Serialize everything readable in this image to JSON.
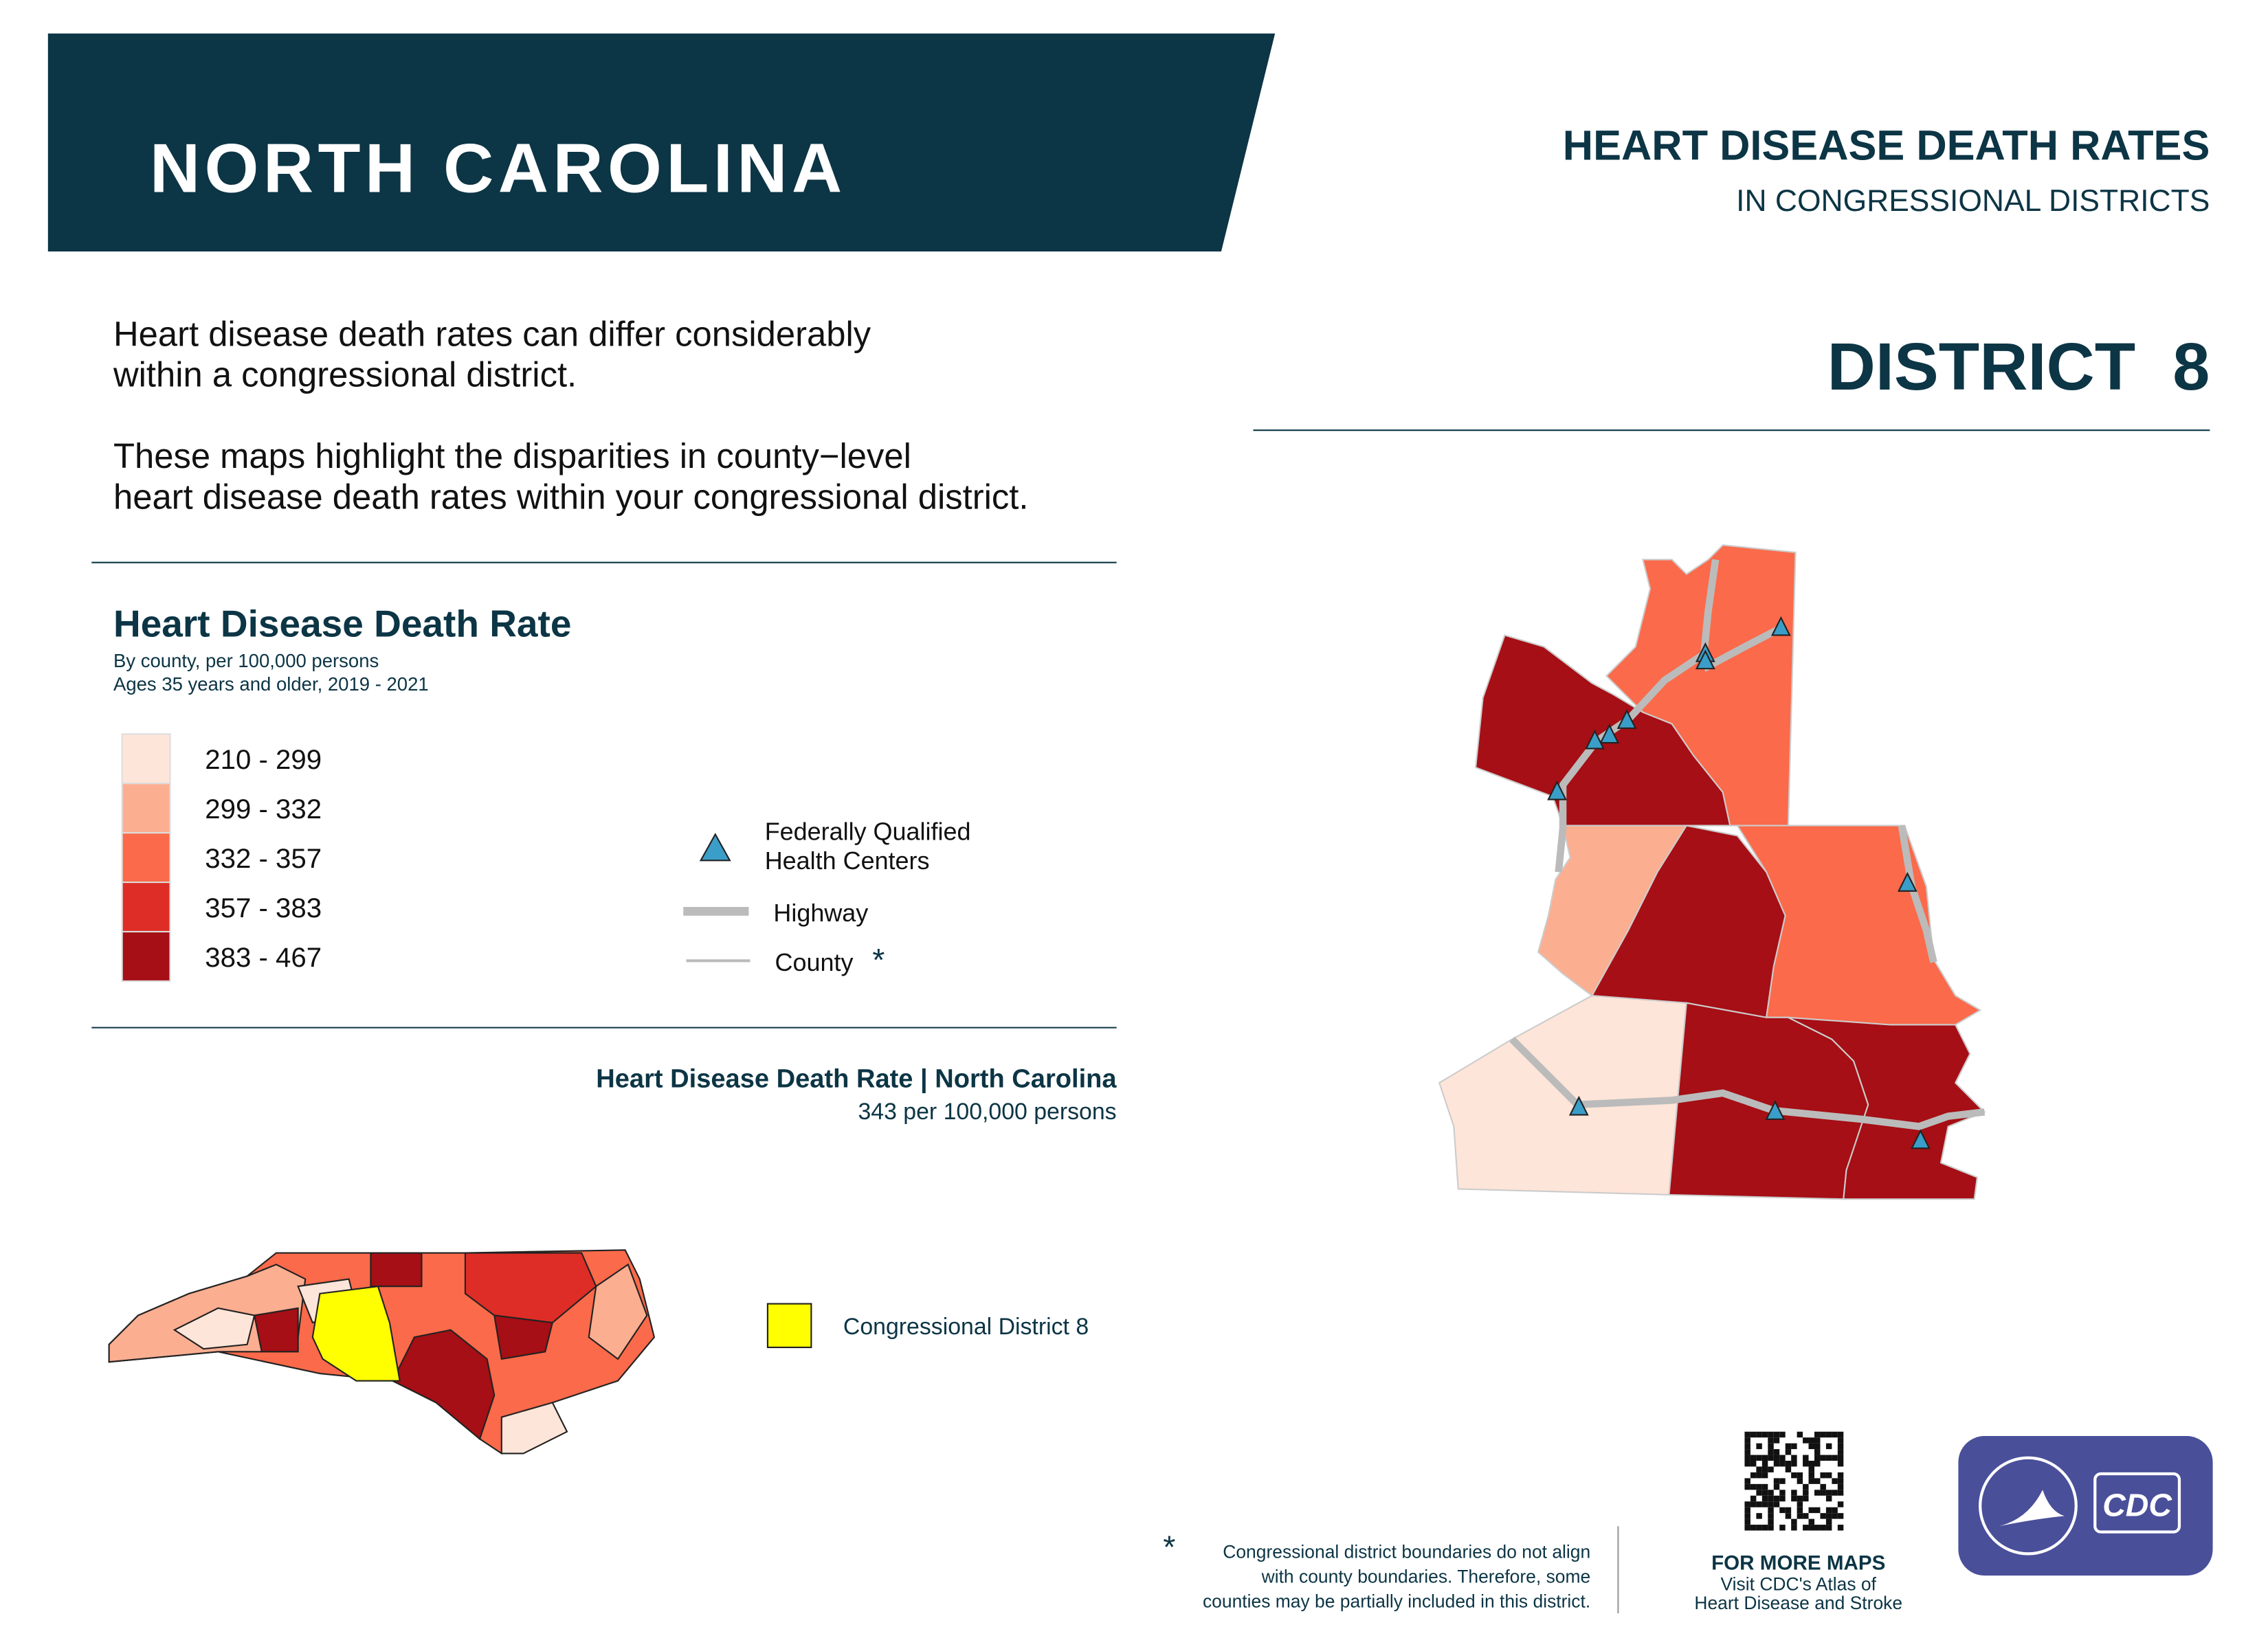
{
  "header": {
    "state": "NORTH CAROLINA",
    "title": "HEART DISEASE DEATH RATES",
    "subtitle": "IN CONGRESSIONAL DISTRICTS",
    "district": "DISTRICT  8"
  },
  "intro": [
    "Heart disease death rates can differ considerably",
    "within a congressional district.",
    "These maps highlight the disparities in county−level",
    "heart disease death rates within your congressional district."
  ],
  "legend": {
    "title": "Heart Disease Death Rate",
    "notes": [
      "By county, per 100,000 persons",
      "Ages 35 years and older, 2019 - 2021"
    ],
    "classes": [
      {
        "label": "210 - 299",
        "color": "#fee5d9"
      },
      {
        "label": "299 - 332",
        "color": "#fcae91"
      },
      {
        "label": "332 - 357",
        "color": "#fb6a4a"
      },
      {
        "label": "357 - 383",
        "color": "#de2d26"
      },
      {
        "label": "383 - 467",
        "color": "#a50f15"
      }
    ],
    "symbols": {
      "fqhc": [
        "Federally Qualified",
        "Health Centers"
      ],
      "highway": "Highway",
      "county": "County",
      "county_mark": "*"
    }
  },
  "state_rate": {
    "title": "Heart Disease Death Rate | North Carolina",
    "value": "343 per 100,000 persons"
  },
  "inset_legend": "Congressional District 8",
  "footnote": {
    "mark": "*",
    "lines": [
      "Congressional district boundaries do not align",
      "with county boundaries. Therefore, some",
      "counties may be partially included in this district."
    ]
  },
  "more_maps": {
    "title": "FOR MORE MAPS",
    "lines": [
      "Visit CDC's Atlas of",
      "Heart Disease and Stroke"
    ]
  },
  "logo": "CDC"
}
